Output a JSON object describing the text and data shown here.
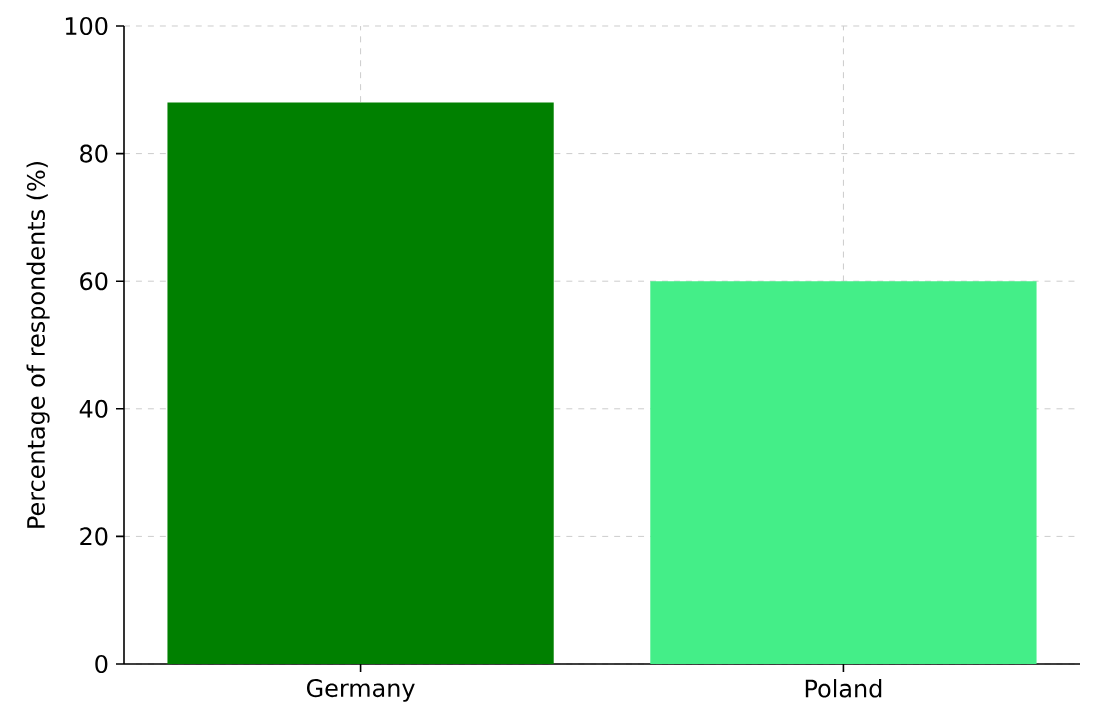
{
  "chart_data": {
    "type": "bar",
    "ylabel": "Percentage of respondents (%)",
    "categories": [
      "Germany",
      "Poland"
    ],
    "values": [
      88,
      60
    ],
    "colors": [
      "#008000",
      "#44ee88"
    ],
    "ylim": [
      0,
      100
    ],
    "yticks": [
      0,
      20,
      40,
      60,
      80,
      100
    ],
    "grid": true
  }
}
